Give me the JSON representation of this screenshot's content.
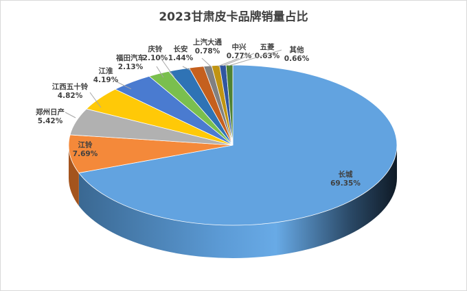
{
  "chart_data": {
    "type": "pie",
    "subtype": "3d-pie",
    "title": "2023甘肃皮卡品牌销量占比",
    "categories": [
      "长城",
      "江铃",
      "郑州日产",
      "江西五十铃",
      "江淮",
      "福田汽车",
      "庆铃",
      "长安",
      "上汽大通",
      "中兴",
      "五菱",
      "其他"
    ],
    "values": [
      69.35,
      7.69,
      5.42,
      4.82,
      4.19,
      2.13,
      2.1,
      1.44,
      0.78,
      0.77,
      0.63,
      0.66
    ],
    "labels": [
      "69.35%",
      "7.69%",
      "5.42%",
      "4.82%",
      "4.19%",
      "2.13%",
      "2.10%",
      "1.44%",
      "0.78%",
      "0.77%",
      "0.63%",
      "0.66%"
    ],
    "colors": [
      "#5b9bd5",
      "#ed7d31",
      "#a5a5a5",
      "#ffc000",
      "#4472c4",
      "#70ad47",
      "#70ad47",
      "#255e91",
      "#9e480e",
      "#636363",
      "#997300",
      "#264478",
      "#43682b"
    ],
    "legend": "none",
    "data_labels": "category name + percentage"
  },
  "header": {
    "title": "2023甘肃皮卡品牌销量占比"
  }
}
